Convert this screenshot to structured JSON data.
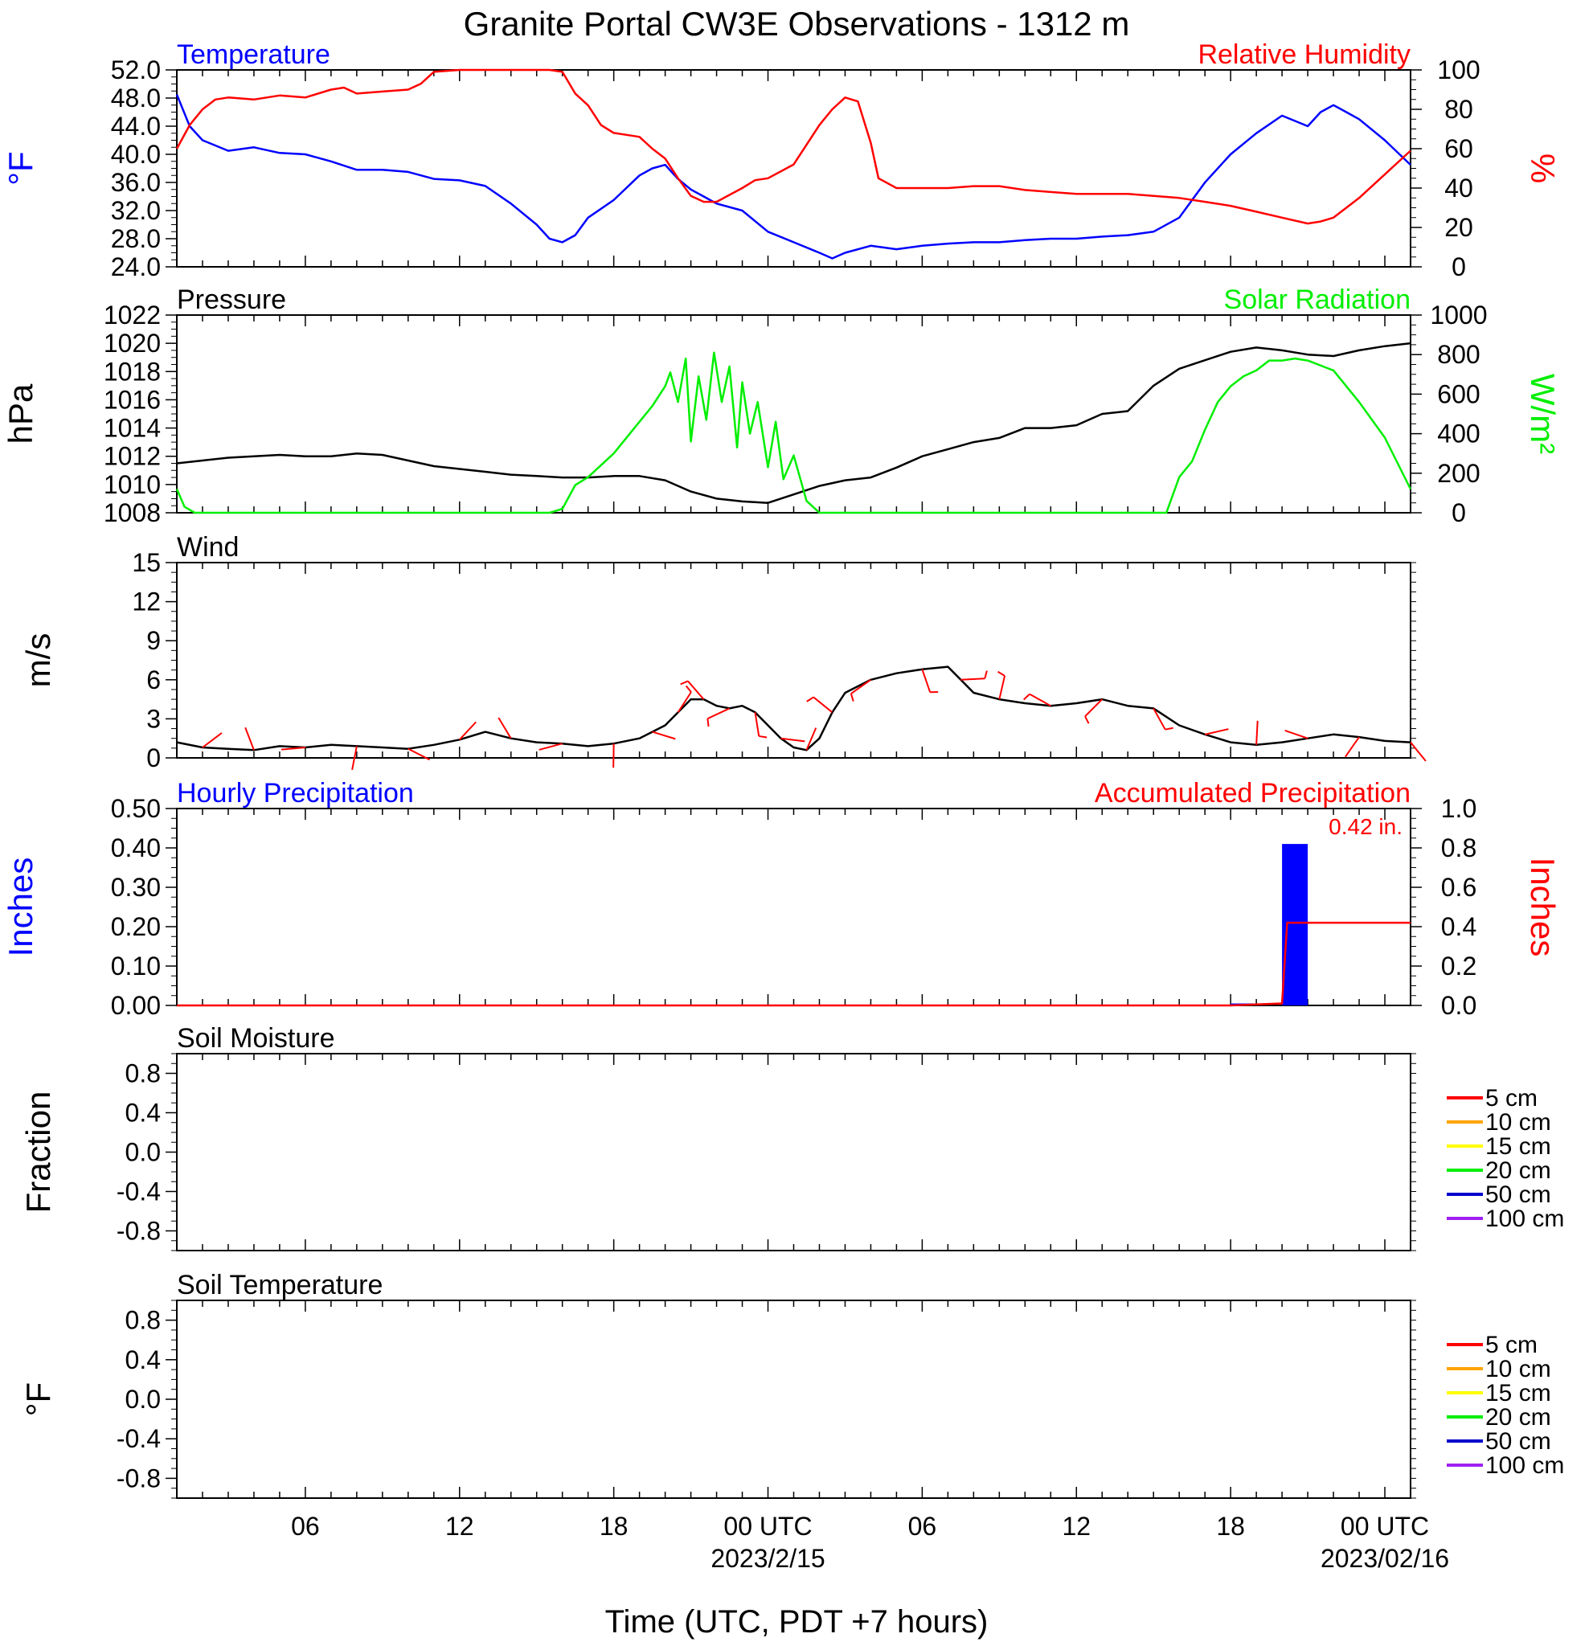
{
  "title": "Granite Portal CW3E Observations - 1312 m",
  "x_axis": {
    "label": "Time (UTC, PDT +7 hours)",
    "ticks": [
      {
        "hour": 5,
        "label": "06",
        "date": ""
      },
      {
        "hour": 11,
        "label": "12",
        "date": ""
      },
      {
        "hour": 17,
        "label": "18",
        "date": ""
      },
      {
        "hour": 23,
        "label": "00 UTC",
        "date": "2023/2/15"
      },
      {
        "hour": 29,
        "label": "06",
        "date": ""
      },
      {
        "hour": 35,
        "label": "12",
        "date": ""
      },
      {
        "hour": 41,
        "label": "18",
        "date": ""
      },
      {
        "hour": 47,
        "label": "00 UTC",
        "date": "2023/02/16"
      }
    ],
    "range_hours": [
      0,
      48
    ]
  },
  "colors": {
    "temperature": "#0000ff",
    "humidity": "#ff0000",
    "pressure": "#000000",
    "solar": "#00ee00",
    "wind": "#000000",
    "barbs": "#ff0000",
    "hourly_precip": "#0000ff",
    "accum_precip": "#ff0000"
  },
  "chart_data": [
    {
      "type": "line",
      "panel": "temperature-humidity",
      "left_title": "Temperature",
      "right_title": "Relative Humidity",
      "ylabel_left": "°F",
      "ylabel_right": "%",
      "ylim_left": [
        24,
        52
      ],
      "yticks_left": [
        "24.0",
        "28.0",
        "32.0",
        "36.0",
        "40.0",
        "44.0",
        "48.0",
        "52.0"
      ],
      "ylim_right": [
        0,
        100
      ],
      "yticks_right": [
        "0",
        "20",
        "40",
        "60",
        "80",
        "100"
      ],
      "series": [
        {
          "name": "Temperature",
          "axis": "left",
          "color": "#0000ff",
          "x": [
            0,
            0.5,
            1,
            2,
            3,
            4,
            5,
            6,
            7,
            8,
            9,
            10,
            11,
            12,
            13,
            14,
            14.5,
            15,
            15.5,
            16,
            17,
            18,
            18.5,
            19,
            19.5,
            20,
            20.5,
            21,
            22,
            23,
            24,
            25,
            25.5,
            26,
            27,
            28,
            29,
            30,
            31,
            32,
            33,
            34,
            35,
            36,
            37,
            38,
            39,
            40,
            41,
            42,
            43,
            44,
            44.5,
            45,
            45.5,
            46,
            47,
            48
          ],
          "y": [
            48.5,
            44,
            42,
            40.5,
            41,
            40.2,
            40,
            39,
            37.8,
            37.8,
            37.5,
            36.5,
            36.3,
            35.5,
            33,
            30,
            28,
            27.5,
            28.5,
            31,
            33.5,
            37,
            38,
            38.5,
            36.5,
            35,
            34,
            33,
            32,
            29,
            27.5,
            26,
            25.2,
            26,
            27,
            26.5,
            27,
            27.3,
            27.5,
            27.5,
            27.8,
            28,
            28,
            28.3,
            28.5,
            29,
            31,
            36,
            40,
            43,
            45.5,
            44,
            46,
            47,
            46,
            45,
            42,
            38.5
          ]
        },
        {
          "name": "Relative Humidity",
          "axis": "right",
          "color": "#ff0000",
          "x": [
            0,
            0.5,
            1,
            1.5,
            2,
            3,
            4,
            5,
            6,
            6.5,
            7,
            8,
            9,
            9.5,
            10,
            11,
            12,
            13,
            14,
            14.5,
            15,
            15.5,
            16,
            16.5,
            17,
            17.5,
            18,
            18.5,
            19,
            19.5,
            20,
            20.5,
            21,
            22,
            22.5,
            23,
            24,
            25,
            25.5,
            26,
            26.5,
            27,
            27.3,
            28,
            29,
            30,
            31,
            32,
            33,
            34,
            35,
            36,
            37,
            38,
            39,
            40,
            41,
            42,
            43,
            44,
            44.5,
            45,
            46,
            47,
            48
          ],
          "y": [
            60,
            72,
            80,
            85,
            86,
            85,
            87,
            86,
            90,
            91,
            88,
            89,
            90,
            93,
            99,
            100,
            100,
            100,
            100,
            100,
            99,
            88,
            82,
            72,
            68,
            67,
            66,
            60,
            55,
            45,
            36,
            33,
            33,
            40,
            44,
            45,
            52,
            72,
            80,
            86,
            84,
            63,
            45,
            40,
            40,
            40,
            41,
            41,
            39,
            38,
            37,
            37,
            37,
            36,
            35,
            33,
            31,
            28,
            25,
            22,
            23,
            25,
            35,
            47,
            59
          ]
        }
      ]
    },
    {
      "type": "line",
      "panel": "pressure-solar",
      "left_title": "Pressure",
      "right_title": "Solar Radiation",
      "ylabel_left": "hPa",
      "ylabel_right": "W/m²",
      "ylim_left": [
        1008,
        1022
      ],
      "yticks_left": [
        "1008",
        "1010",
        "1012",
        "1014",
        "1016",
        "1018",
        "1020",
        "1022"
      ],
      "ylim_right": [
        0,
        1000
      ],
      "yticks_right": [
        "0",
        "200",
        "400",
        "600",
        "800",
        "1000"
      ],
      "series": [
        {
          "name": "Pressure",
          "axis": "left",
          "color": "#000000",
          "x": [
            0,
            1,
            2,
            3,
            4,
            5,
            6,
            7,
            8,
            9,
            10,
            11,
            12,
            13,
            14,
            15,
            16,
            17,
            18,
            19,
            20,
            21,
            22,
            23,
            24,
            25,
            26,
            27,
            28,
            29,
            30,
            31,
            32,
            33,
            34,
            35,
            36,
            37,
            38,
            39,
            40,
            41,
            42,
            43,
            44,
            45,
            46,
            47,
            48
          ],
          "y": [
            1011.5,
            1011.7,
            1011.9,
            1012,
            1012.1,
            1012,
            1012,
            1012.2,
            1012.1,
            1011.7,
            1011.3,
            1011.1,
            1010.9,
            1010.7,
            1010.6,
            1010.5,
            1010.5,
            1010.6,
            1010.6,
            1010.3,
            1009.5,
            1009,
            1008.8,
            1008.7,
            1009.3,
            1009.9,
            1010.3,
            1010.5,
            1011.2,
            1012,
            1012.5,
            1013,
            1013.3,
            1014,
            1014,
            1014.2,
            1015,
            1015.2,
            1017,
            1018.2,
            1018.8,
            1019.4,
            1019.7,
            1019.5,
            1019.2,
            1019.1,
            1019.5,
            1019.8,
            1020
          ]
        },
        {
          "name": "Solar Radiation",
          "axis": "right",
          "color": "#00ee00",
          "x": [
            0,
            0.3,
            0.7,
            1,
            14,
            14.5,
            15,
            15.5,
            16,
            17,
            18,
            18.5,
            19,
            19.2,
            19.5,
            19.8,
            20,
            20.3,
            20.6,
            20.9,
            21.2,
            21.5,
            21.8,
            22,
            22.3,
            22.6,
            23,
            23.3,
            23.6,
            24,
            24.5,
            25,
            38,
            38.5,
            39,
            39.5,
            40,
            40.5,
            41,
            41.5,
            42,
            42.5,
            43,
            43.5,
            44,
            45,
            46,
            47,
            48
          ],
          "y": [
            120,
            30,
            0,
            0,
            0,
            0,
            20,
            140,
            180,
            300,
            460,
            540,
            640,
            710,
            560,
            780,
            360,
            690,
            470,
            810,
            560,
            740,
            330,
            660,
            400,
            560,
            230,
            460,
            170,
            290,
            60,
            0,
            0,
            0,
            180,
            260,
            420,
            560,
            640,
            690,
            720,
            770,
            770,
            780,
            770,
            720,
            560,
            380,
            120
          ]
        }
      ]
    },
    {
      "type": "line",
      "panel": "wind",
      "left_title": "Wind",
      "ylabel_left": "m/s",
      "ylim_left": [
        0,
        15
      ],
      "yticks_left": [
        "0",
        "3",
        "6",
        "9",
        "12",
        "15"
      ],
      "series": [
        {
          "name": "Wind",
          "axis": "left",
          "color": "#000000",
          "x": [
            0,
            1,
            2,
            3,
            4,
            5,
            6,
            7,
            8,
            9,
            10,
            11,
            12,
            13,
            14,
            15,
            16,
            17,
            18,
            18.5,
            19,
            19.5,
            20,
            20.5,
            21,
            21.5,
            22,
            22.5,
            23,
            23.5,
            24,
            24.5,
            25,
            25.5,
            26,
            27,
            28,
            29,
            30,
            30.5,
            31,
            32,
            33,
            34,
            35,
            36,
            37,
            38,
            39,
            40,
            41,
            42,
            43,
            44,
            45,
            46,
            47,
            48
          ],
          "y": [
            1.2,
            0.8,
            0.7,
            0.6,
            0.9,
            0.8,
            1,
            0.9,
            0.8,
            0.7,
            1,
            1.4,
            2,
            1.5,
            1.2,
            1.1,
            0.9,
            1.1,
            1.5,
            2,
            2.5,
            3.5,
            4.5,
            4.5,
            4,
            3.8,
            4,
            3.5,
            2.5,
            1.5,
            0.8,
            0.6,
            1.5,
            3.5,
            5,
            6,
            6.5,
            6.8,
            7,
            6,
            5,
            4.5,
            4.2,
            4,
            4.2,
            4.5,
            4,
            3.8,
            2.5,
            1.8,
            1.2,
            1,
            1.2,
            1.5,
            1.8,
            1.6,
            1.3,
            1.2
          ]
        }
      ]
    },
    {
      "type": "bar",
      "panel": "precipitation",
      "left_title": "Hourly Precipitation",
      "right_title": "Accumulated Precipitation",
      "annotation": "0.42 in.",
      "ylabel_left": "Inches",
      "ylabel_right": "Inches",
      "ylim_left": [
        0,
        0.5
      ],
      "yticks_left": [
        "0.00",
        "0.10",
        "0.20",
        "0.30",
        "0.40",
        "0.50"
      ],
      "ylim_right": [
        0,
        1.0
      ],
      "yticks_right": [
        "0.0",
        "0.2",
        "0.4",
        "0.6",
        "0.8",
        "1.0"
      ],
      "bars": [
        {
          "start": 41,
          "end": 42,
          "value": 0.005
        },
        {
          "start": 43,
          "end": 44,
          "value": 0.41
        }
      ],
      "accumulated": {
        "x": [
          0,
          41,
          43,
          43.2,
          48
        ],
        "y": [
          0,
          0,
          0.01,
          0.42,
          0.42
        ]
      }
    },
    {
      "type": "line",
      "panel": "soil-moisture",
      "left_title": "Soil Moisture",
      "ylabel_left": "Fraction",
      "ylim_left": [
        -1,
        1
      ],
      "yticks_left": [
        "-0.8",
        "-0.4",
        "0.0",
        "0.4",
        "0.8"
      ],
      "legend": [
        {
          "label": "5 cm",
          "color": "#ff0000"
        },
        {
          "label": "10 cm",
          "color": "#ffa500"
        },
        {
          "label": "15 cm",
          "color": "#ffff00"
        },
        {
          "label": "20 cm",
          "color": "#00ee00"
        },
        {
          "label": "50 cm",
          "color": "#0000cc"
        },
        {
          "label": "100 cm",
          "color": "#a020f0"
        }
      ],
      "series": []
    },
    {
      "type": "line",
      "panel": "soil-temperature",
      "left_title": "Soil Temperature",
      "ylabel_left": "°F",
      "ylim_left": [
        -1,
        1
      ],
      "yticks_left": [
        "-0.8",
        "-0.4",
        "0.0",
        "0.4",
        "0.8"
      ],
      "legend": [
        {
          "label": "5 cm",
          "color": "#ff0000"
        },
        {
          "label": "10 cm",
          "color": "#ffa500"
        },
        {
          "label": "15 cm",
          "color": "#ffff00"
        },
        {
          "label": "20 cm",
          "color": "#00ee00"
        },
        {
          "label": "50 cm",
          "color": "#0000cc"
        },
        {
          "label": "100 cm",
          "color": "#a020f0"
        }
      ],
      "series": []
    }
  ]
}
